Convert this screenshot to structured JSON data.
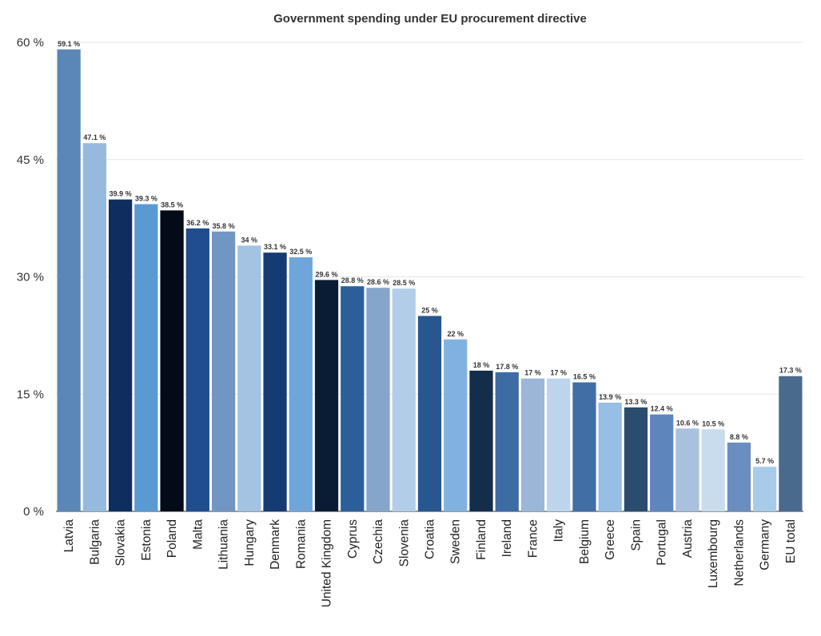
{
  "chart_data": {
    "type": "bar",
    "title": "Government spending under EU procurement directive",
    "xlabel": "",
    "ylabel": "",
    "ylim": [
      0,
      60
    ],
    "y_ticks": [
      0,
      15,
      30,
      45,
      60
    ],
    "y_tick_labels": [
      "0 %",
      "15 %",
      "30 %",
      "45 %",
      "60 %"
    ],
    "value_suffix": " %",
    "grid": true,
    "legend": "none",
    "categories": [
      "Latvia",
      "Bulgaria",
      "Slovakia",
      "Estonia",
      "Poland",
      "Malta",
      "Lithuania",
      "Hungary",
      "Denmark",
      "Romania",
      "United Kingdom",
      "Cyprus",
      "Czechia",
      "Slovenia",
      "Croatia",
      "Sweden",
      "Finland",
      "Ireland",
      "France",
      "Italy",
      "Belgium",
      "Greece",
      "Spain",
      "Portugal",
      "Austria",
      "Luxembourg",
      "Netherlands",
      "Germany",
      "EU total"
    ],
    "values": [
      59.1,
      47.1,
      39.9,
      39.3,
      38.5,
      36.2,
      35.8,
      34,
      33.1,
      32.5,
      29.6,
      28.8,
      28.6,
      28.5,
      25,
      22,
      18,
      17.8,
      17,
      17,
      16.5,
      13.9,
      13.3,
      12.4,
      10.6,
      10.5,
      8.8,
      5.7,
      17.3
    ],
    "colors": [
      "#5b87b7",
      "#95bade",
      "#0f2e5f",
      "#5a9ad2",
      "#040b18",
      "#1f4d8e",
      "#7196c4",
      "#a4c3e3",
      "#163b72",
      "#6ea6d9",
      "#0a1c33",
      "#2b5f9c",
      "#86a5cb",
      "#b2cde8",
      "#28568f",
      "#81b2df",
      "#142d4b",
      "#3d6ca5",
      "#9cb6d7",
      "#bcd5ed",
      "#406ea5",
      "#97bee4",
      "#2c4c6e",
      "#5e86bd",
      "#a9c1de",
      "#c8dcee",
      "#6a8ebf",
      "#a9cbea",
      "#4a6a8d"
    ]
  }
}
